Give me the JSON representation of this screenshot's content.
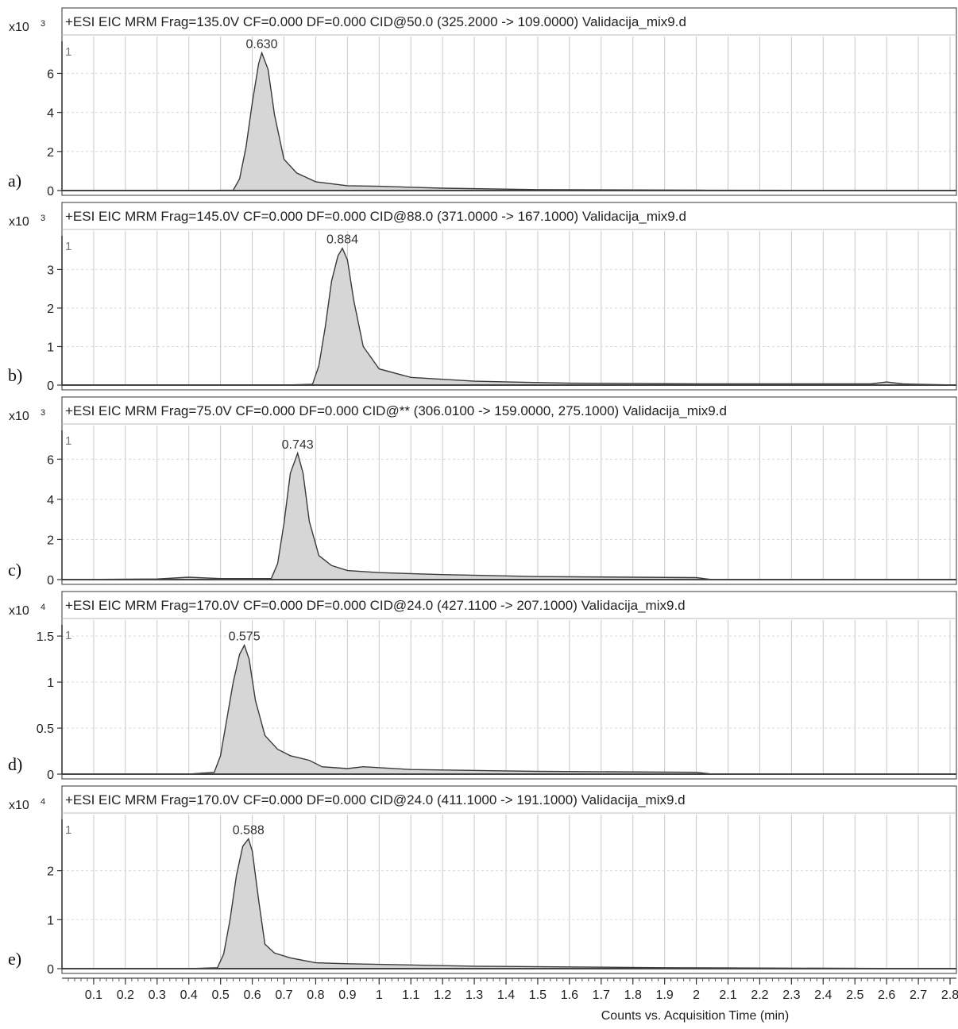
{
  "x_axis": {
    "label": "Counts vs. Acquisition Time (min)",
    "ticks": [
      "0.1",
      "0.2",
      "0.3",
      "0.4",
      "0.5",
      "0.6",
      "0.7",
      "0.8",
      "0.9",
      "1",
      "1.1",
      "1.2",
      "1.3",
      "1.4",
      "1.5",
      "1.6",
      "1.7",
      "1.8",
      "1.9",
      "2",
      "2.1",
      "2.2",
      "2.3",
      "2.4",
      "2.5",
      "2.6",
      "2.7",
      "2.8"
    ],
    "range": [
      0.0,
      2.82
    ]
  },
  "colors": {
    "fill": "#d6d6d6",
    "line": "#3a3a3a",
    "grid": "#c8c8c8",
    "frame": "#555555"
  },
  "chart_data": [
    {
      "type": "area",
      "panel_label": "a)",
      "title": "+ESI EIC MRM Frag=135.0V CF=0.000 DF=0.000 CID@50.0 (325.2000 -> 109.0000) Validacija_mix9.d",
      "multiplier": "x10",
      "multiplier_exp": "3",
      "trace_label": "1",
      "peak_label": "0.630",
      "peak_rt": 0.63,
      "yticks": [
        "0",
        "2",
        "4",
        "6"
      ],
      "ytick_values": [
        0,
        2,
        4,
        6
      ],
      "ylim": [
        0,
        7.4
      ],
      "x": [
        0.0,
        0.4,
        0.54,
        0.56,
        0.58,
        0.6,
        0.62,
        0.63,
        0.65,
        0.67,
        0.7,
        0.74,
        0.8,
        0.9,
        1.0,
        1.2,
        1.5,
        2.0,
        2.82
      ],
      "y": [
        0.0,
        0.0,
        0.02,
        0.6,
        2.2,
        4.5,
        6.5,
        7.05,
        6.2,
        3.9,
        1.6,
        0.9,
        0.45,
        0.25,
        0.22,
        0.12,
        0.05,
        0.02,
        0.0
      ]
    },
    {
      "type": "area",
      "panel_label": "b)",
      "title": "+ESI EIC MRM Frag=145.0V CF=0.000 DF=0.000 CID@88.0 (371.0000 -> 167.1000) Validacija_mix9.d",
      "multiplier": "x10",
      "multiplier_exp": "3",
      "trace_label": "1",
      "peak_label": "0.884",
      "peak_rt": 0.884,
      "yticks": [
        "0",
        "1",
        "2",
        "3"
      ],
      "ytick_values": [
        0,
        1,
        2,
        3
      ],
      "ylim": [
        0,
        3.75
      ],
      "x": [
        0.0,
        0.7,
        0.79,
        0.81,
        0.83,
        0.85,
        0.87,
        0.884,
        0.9,
        0.92,
        0.95,
        1.0,
        1.1,
        1.3,
        1.6,
        2.0,
        2.55,
        2.6,
        2.65,
        2.82
      ],
      "y": [
        0.0,
        0.0,
        0.02,
        0.5,
        1.5,
        2.7,
        3.35,
        3.55,
        3.25,
        2.2,
        1.0,
        0.42,
        0.2,
        0.1,
        0.05,
        0.03,
        0.03,
        0.08,
        0.03,
        0.0
      ]
    },
    {
      "type": "area",
      "panel_label": "c)",
      "title": "+ESI EIC MRM Frag=75.0V CF=0.000 DF=0.000 CID@** (306.0100 -> 159.0000, 275.1000) Validacija_mix9.d",
      "multiplier": "x10",
      "multiplier_exp": "3",
      "trace_label": "1",
      "peak_label": "0.743",
      "peak_rt": 0.743,
      "yticks": [
        "0",
        "2",
        "4",
        "6"
      ],
      "ytick_values": [
        0,
        2,
        4,
        6
      ],
      "ylim": [
        0,
        7.2
      ],
      "x": [
        0.0,
        0.3,
        0.4,
        0.5,
        0.66,
        0.68,
        0.7,
        0.72,
        0.743,
        0.76,
        0.78,
        0.81,
        0.85,
        0.9,
        1.0,
        1.2,
        1.5,
        2.0,
        2.05,
        2.82
      ],
      "y": [
        0.0,
        0.03,
        0.12,
        0.05,
        0.05,
        0.8,
        2.8,
        5.3,
        6.3,
        5.3,
        2.9,
        1.2,
        0.7,
        0.45,
        0.35,
        0.25,
        0.15,
        0.1,
        0.0,
        0.0
      ]
    },
    {
      "type": "area",
      "panel_label": "d)",
      "title": "+ESI EIC MRM Frag=170.0V CF=0.000 DF=0.000 CID@24.0 (427.1100 -> 207.1000) Validacija_mix9.d",
      "multiplier": "x10",
      "multiplier_exp": "4",
      "trace_label": "1",
      "peak_label": "0.575",
      "peak_rt": 0.575,
      "yticks": [
        "0",
        "0.5",
        "1",
        "1.5"
      ],
      "ytick_values": [
        0,
        0.5,
        1,
        1.5
      ],
      "ylim": [
        0,
        1.57
      ],
      "x": [
        0.0,
        0.4,
        0.48,
        0.5,
        0.52,
        0.54,
        0.56,
        0.575,
        0.59,
        0.61,
        0.64,
        0.68,
        0.72,
        0.78,
        0.82,
        0.9,
        0.95,
        1.1,
        1.5,
        2.0,
        2.05,
        2.82
      ],
      "y": [
        0.0,
        0.0,
        0.02,
        0.2,
        0.6,
        1.0,
        1.3,
        1.4,
        1.25,
        0.8,
        0.42,
        0.27,
        0.2,
        0.15,
        0.08,
        0.06,
        0.08,
        0.05,
        0.03,
        0.02,
        0.0,
        0.0
      ]
    },
    {
      "type": "area",
      "panel_label": "e)",
      "title": "+ESI EIC MRM Frag=170.0V CF=0.000 DF=0.000 CID@24.0 (411.1000 -> 191.1000) Validacija_mix9.d",
      "multiplier": "x10",
      "multiplier_exp": "4",
      "trace_label": "1",
      "peak_label": "0.588",
      "peak_rt": 0.588,
      "yticks": [
        "0",
        "1",
        "2"
      ],
      "ytick_values": [
        0,
        1,
        2
      ],
      "ylim": [
        0,
        2.95
      ],
      "x": [
        0.0,
        0.4,
        0.49,
        0.51,
        0.53,
        0.55,
        0.57,
        0.588,
        0.6,
        0.62,
        0.64,
        0.67,
        0.72,
        0.8,
        0.9,
        1.3,
        1.9,
        2.82
      ],
      "y": [
        0.0,
        0.0,
        0.02,
        0.3,
        1.0,
        1.9,
        2.5,
        2.65,
        2.4,
        1.4,
        0.5,
        0.32,
        0.22,
        0.12,
        0.1,
        0.05,
        0.02,
        0.0
      ]
    }
  ]
}
